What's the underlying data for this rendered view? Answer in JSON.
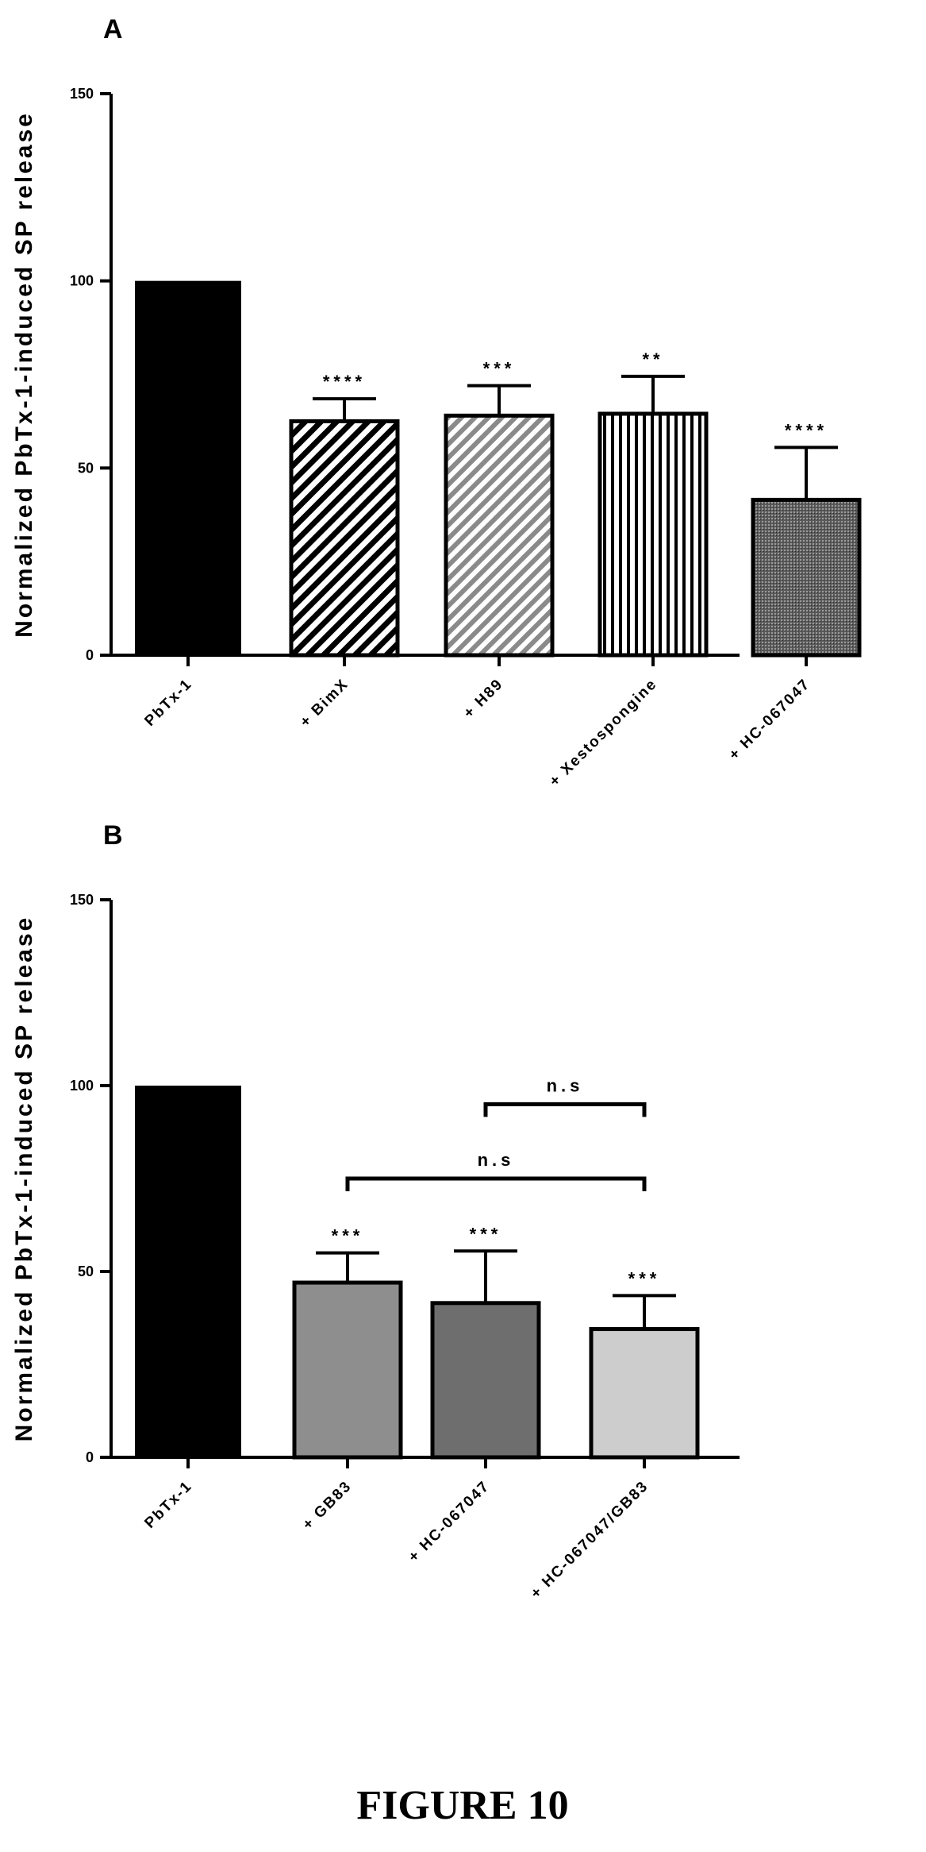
{
  "figure_caption": "FIGURE 10",
  "chart_data": [
    {
      "panel": "A",
      "type": "bar",
      "ylabel": "Normalized PbTx-1-induced SP release",
      "xlabel": "",
      "ylim": [
        0,
        150
      ],
      "yticks": [
        "0",
        "50",
        "100",
        "150"
      ],
      "categories": [
        "PbTx-1",
        "+ BimX",
        "+ H89",
        "+ Xestospongine",
        "+ HC-067047"
      ],
      "values": [
        100,
        62.5,
        64,
        64.5,
        41.5
      ],
      "errors": [
        0,
        6,
        8,
        10,
        14
      ],
      "fills": [
        "solid-black",
        "diagonal-black",
        "diagonal-gray",
        "vertical-black",
        "dense-dots"
      ],
      "significance": [
        "",
        "****",
        "***",
        "**",
        "****"
      ],
      "comparisons": []
    },
    {
      "panel": "B",
      "type": "bar",
      "ylabel": "Normalized PbTx-1-induced SP release",
      "xlabel": "",
      "ylim": [
        0,
        150
      ],
      "yticks": [
        "0",
        "50",
        "100",
        "150"
      ],
      "categories": [
        "PbTx-1",
        "+ GB83",
        "+ HC-067047",
        "+ HC-067047/GB83"
      ],
      "values": [
        100,
        47,
        41.5,
        34.5
      ],
      "errors": [
        0,
        8,
        14,
        9
      ],
      "fills": [
        "solid-black",
        "gray-mid",
        "gray-dark",
        "gray-light"
      ],
      "significance": [
        "",
        "***",
        "***",
        "***"
      ],
      "comparisons": [
        {
          "from": 1,
          "to": 3,
          "level": 75,
          "label": "n.s"
        },
        {
          "from": 2,
          "to": 3,
          "level": 95,
          "label": "n.s"
        }
      ]
    }
  ],
  "colors": {
    "ink": "#000000",
    "gray-mid": "#8e8e8e",
    "gray-dark": "#6e6e6e",
    "gray-light": "#cdcdcd",
    "diagonal-gray": "#8a8a8a"
  }
}
